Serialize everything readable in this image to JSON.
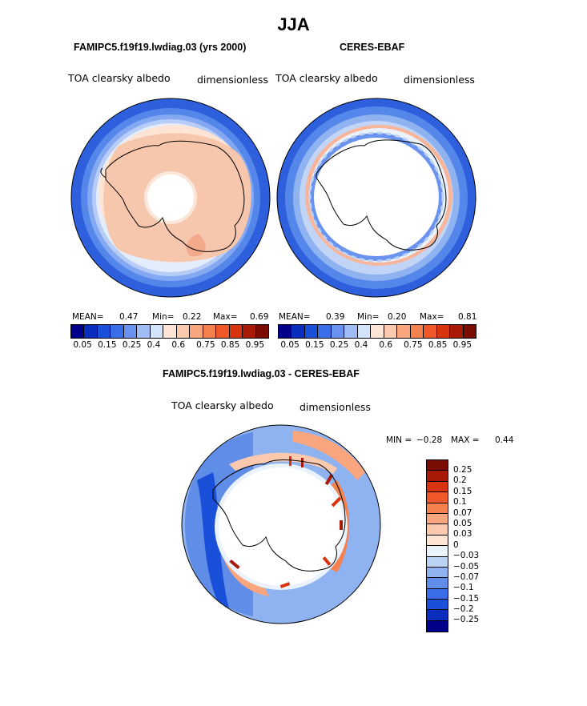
{
  "figure": {
    "title": "JJA"
  },
  "panels": {
    "model": {
      "title": "FAMIPC5.f19f19.lwdiag.03 (yrs 2000)",
      "variable": "TOA clearsky albedo",
      "units": "dimensionless",
      "stats": {
        "mean_label": "MEAN=",
        "mean": "0.47",
        "min_label": "Min=",
        "min": "0.22",
        "max_label": "Max=",
        "max": "0.69"
      }
    },
    "obs": {
      "title": "CERES-EBAF",
      "variable": "TOA clearsky albedo",
      "units": "dimensionless",
      "stats": {
        "mean_label": "MEAN=",
        "mean": "0.39",
        "min_label": "Min=",
        "min": "0.20",
        "max_label": "Max=",
        "max": "0.81"
      }
    },
    "diff": {
      "title": "FAMIPC5.f19f19.lwdiag.03 - CERES-EBAF",
      "variable": "TOA clearsky albedo",
      "units": "dimensionless",
      "stats": {
        "min_label": "MIN =",
        "min": "−0.28",
        "max_label": "MAX =",
        "max": "0.44"
      }
    }
  },
  "colorbar_main": {
    "colors": [
      "#00008b",
      "#0a2dbe",
      "#1a4fd9",
      "#3a6ee8",
      "#6a93f0",
      "#9fbcf5",
      "#d2e3fa",
      "#fde4d4",
      "#fbc9ad",
      "#f9a57e",
      "#f5814f",
      "#f0582a",
      "#d8340f",
      "#a81a06",
      "#7a0c02"
    ],
    "tick_labels": [
      "0.05",
      "0.15",
      "0.25",
      "0.4",
      "0.6",
      "0.75",
      "0.85",
      "0.95"
    ]
  },
  "colorbar_diff": {
    "colors": [
      "#7a0c02",
      "#a81a06",
      "#d8340f",
      "#f0582a",
      "#f5814f",
      "#f9a57e",
      "#fbc9ad",
      "#fde4d4",
      "#eaf2fb",
      "#bcd2f5",
      "#8fb2f0",
      "#5f8de8",
      "#3a6ee8",
      "#1a4fd9",
      "#0a2dbe",
      "#00008b"
    ],
    "tick_labels": [
      "0.25",
      "0.2",
      "0.15",
      "0.1",
      "0.07",
      "0.05",
      "0.03",
      "0",
      "−0.03",
      "−0.05",
      "−0.07",
      "−0.1",
      "−0.15",
      "−0.2",
      "−0.25"
    ]
  }
}
